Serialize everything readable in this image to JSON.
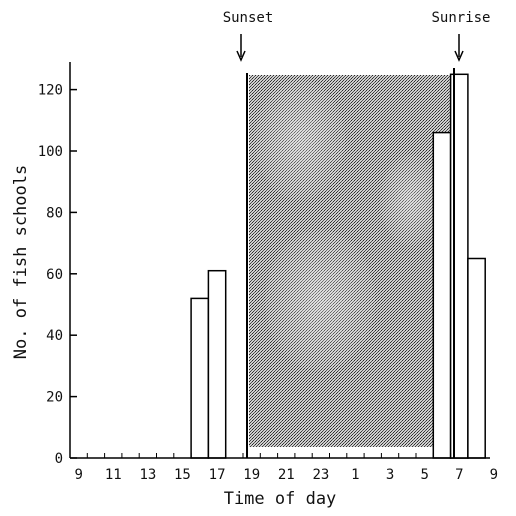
{
  "chart_data": {
    "type": "bar",
    "title": "",
    "xlabel": "Time of day",
    "ylabel": "No. of fish schools",
    "ylim": [
      0,
      130
    ],
    "yticks": [
      0,
      20,
      40,
      60,
      80,
      100,
      120
    ],
    "xtick_labels": [
      "9",
      "11",
      "13",
      "15",
      "17",
      "19",
      "21",
      "23",
      "1",
      "3",
      "5",
      "7",
      "9"
    ],
    "categories": [
      "9",
      "10",
      "11",
      "12",
      "13",
      "14",
      "15",
      "16",
      "17",
      "18",
      "19",
      "20",
      "21",
      "22",
      "23",
      "24",
      "1",
      "2",
      "3",
      "4",
      "5",
      "6",
      "7",
      "8"
    ],
    "values": [
      0,
      0,
      0,
      0,
      0,
      0,
      0,
      52,
      61,
      null,
      null,
      null,
      null,
      null,
      null,
      null,
      null,
      null,
      null,
      null,
      null,
      106,
      125,
      65
    ],
    "night_period": {
      "from": "Sunset",
      "to": "Sunrise",
      "shaded": true
    },
    "annotations": [
      "Sunset",
      "Sunrise"
    ],
    "grid": false
  },
  "colors": {
    "bar_fill": "#ffffff",
    "bar_stroke": "#000000",
    "night_shade": "#8c8c8c"
  }
}
